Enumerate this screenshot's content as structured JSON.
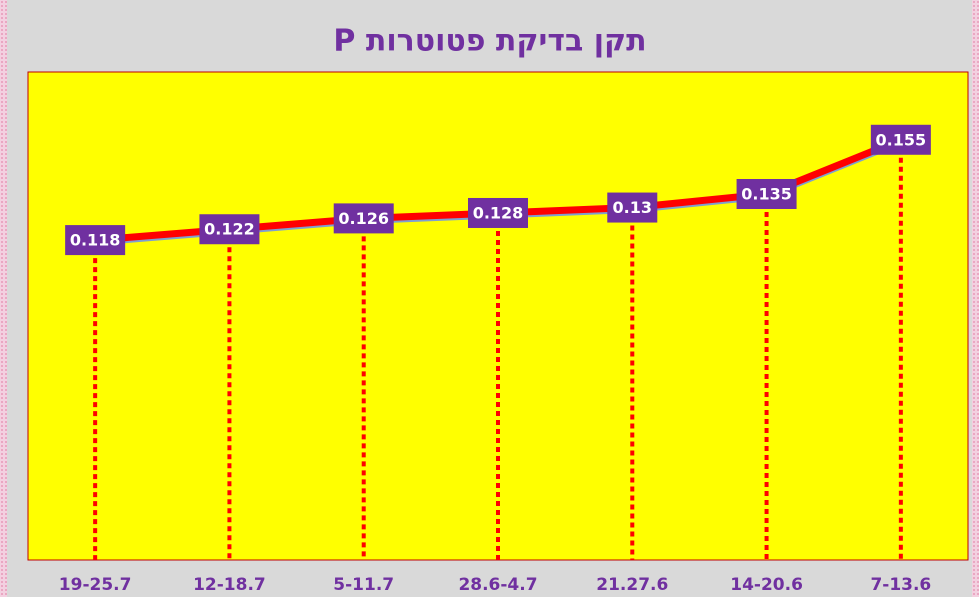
{
  "chart_data": {
    "type": "line",
    "title": "תקן בדיקת פטוטרות P",
    "categories": [
      "19-25.7",
      "12-18.7",
      "5-11.7",
      "28.6-4.7",
      "21.27.6",
      "14-20.6",
      "7-13.6"
    ],
    "values": [
      0.118,
      0.122,
      0.126,
      0.128,
      0.13,
      0.135,
      0.155
    ],
    "color": "#ff0000",
    "ylim": [
      0,
      0.18
    ]
  }
}
